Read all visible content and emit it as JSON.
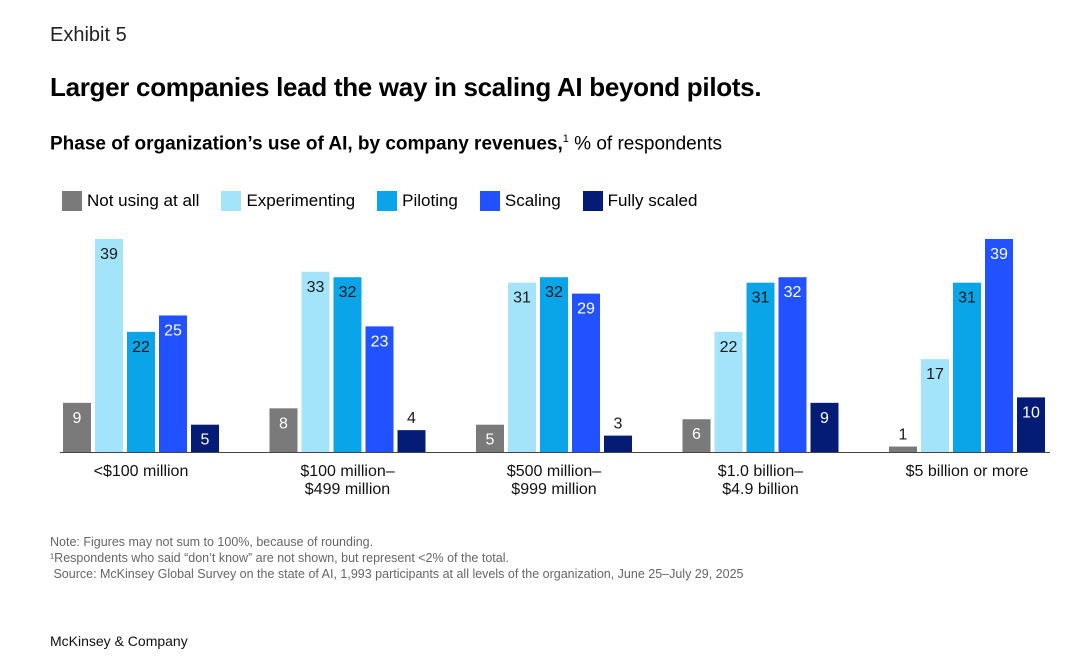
{
  "exhibit": "Exhibit 5",
  "title": "Larger companies lead the way in scaling AI beyond pilots.",
  "subtitle_bold": "Phase of organization’s use of AI, by company revenues,",
  "subtitle_sup": "1",
  "subtitle_rest": " % of respondents",
  "chart_data": {
    "type": "bar",
    "title": "Phase of organization’s use of AI, by company revenues, % of respondents",
    "xlabel": "",
    "ylabel": "% of respondents",
    "ylim": [
      0,
      40
    ],
    "legend_position": "top-left",
    "categories": [
      [
        "<$100 million"
      ],
      [
        "$100 million–",
        "$499 million"
      ],
      [
        "$500 million–",
        "$999 million"
      ],
      [
        "$1.0 billion–",
        "$4.9 billion"
      ],
      [
        "$5 billion or more"
      ]
    ],
    "series": [
      {
        "name": "Not using at all",
        "color": "#7a7a7a",
        "label_color": "#ffffff",
        "values": [
          9,
          8,
          5,
          6,
          1
        ]
      },
      {
        "name": "Experimenting",
        "color": "#a3e4fb",
        "label_color": "#1a1a1a",
        "values": [
          39,
          33,
          31,
          22,
          17
        ]
      },
      {
        "name": "Piloting",
        "color": "#0aa5e8",
        "label_color": "#1a1a1a",
        "values": [
          22,
          32,
          32,
          31,
          31
        ]
      },
      {
        "name": "Scaling",
        "color": "#2251ff",
        "label_color": "#ffffff",
        "values": [
          25,
          23,
          29,
          32,
          39
        ]
      },
      {
        "name": "Fully scaled",
        "color": "#051c77",
        "label_color": "#ffffff",
        "values": [
          5,
          4,
          3,
          9,
          10
        ]
      }
    ]
  },
  "notes": [
    "Note: Figures may not sum to 100%, because of rounding.",
    "¹Respondents who said “don’t know” are not shown, but represent <2% of the total.",
    " Source: McKinsey Global Survey on the state of AI, 1,993 participants at all levels of the organization, June 25–July 29, 2025"
  ],
  "brand": "McKinsey & Company"
}
